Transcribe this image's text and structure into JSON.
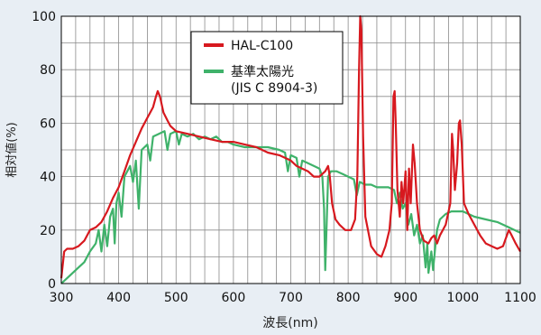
{
  "chart_data": {
    "type": "line",
    "xlabel": "波長(nm)",
    "ylabel": "相対値(%)",
    "xlim": [
      300,
      1100
    ],
    "ylim": [
      0,
      100
    ],
    "x_ticks": [
      300,
      400,
      500,
      600,
      700,
      800,
      900,
      1000,
      1100
    ],
    "y_ticks": [
      0,
      20,
      40,
      60,
      80,
      100
    ],
    "grid": true,
    "legend_position": "top-center",
    "series": [
      {
        "name": "HAL-C100",
        "color": "#d7191f",
        "points": [
          [
            300,
            2
          ],
          [
            305,
            12
          ],
          [
            310,
            13
          ],
          [
            320,
            13
          ],
          [
            330,
            14
          ],
          [
            340,
            16
          ],
          [
            350,
            20
          ],
          [
            360,
            21
          ],
          [
            370,
            23
          ],
          [
            380,
            27
          ],
          [
            390,
            32
          ],
          [
            400,
            36
          ],
          [
            410,
            42
          ],
          [
            420,
            48
          ],
          [
            430,
            53
          ],
          [
            440,
            58
          ],
          [
            450,
            62
          ],
          [
            455,
            64
          ],
          [
            460,
            66
          ],
          [
            465,
            70
          ],
          [
            468,
            72
          ],
          [
            472,
            70
          ],
          [
            478,
            64
          ],
          [
            485,
            61
          ],
          [
            490,
            59
          ],
          [
            500,
            57
          ],
          [
            520,
            56
          ],
          [
            540,
            55
          ],
          [
            560,
            54
          ],
          [
            580,
            53
          ],
          [
            600,
            53
          ],
          [
            620,
            52
          ],
          [
            640,
            51
          ],
          [
            660,
            49
          ],
          [
            680,
            48
          ],
          [
            700,
            46
          ],
          [
            710,
            44
          ],
          [
            720,
            43
          ],
          [
            730,
            42
          ],
          [
            740,
            40
          ],
          [
            750,
            40
          ],
          [
            760,
            42
          ],
          [
            765,
            44
          ],
          [
            768,
            40
          ],
          [
            772,
            30
          ],
          [
            778,
            24
          ],
          [
            785,
            22
          ],
          [
            795,
            20
          ],
          [
            805,
            20
          ],
          [
            812,
            24
          ],
          [
            816,
            40
          ],
          [
            819,
            80
          ],
          [
            821,
            100
          ],
          [
            823,
            95
          ],
          [
            826,
            55
          ],
          [
            830,
            25
          ],
          [
            840,
            14
          ],
          [
            850,
            11
          ],
          [
            858,
            10
          ],
          [
            865,
            14
          ],
          [
            872,
            20
          ],
          [
            876,
            30
          ],
          [
            879,
            70
          ],
          [
            881,
            72
          ],
          [
            883,
            60
          ],
          [
            886,
            35
          ],
          [
            890,
            25
          ],
          [
            893,
            38
          ],
          [
            896,
            30
          ],
          [
            900,
            42
          ],
          [
            903,
            20
          ],
          [
            906,
            43
          ],
          [
            909,
            30
          ],
          [
            913,
            52
          ],
          [
            916,
            45
          ],
          [
            920,
            30
          ],
          [
            925,
            20
          ],
          [
            932,
            16
          ],
          [
            940,
            15
          ],
          [
            945,
            17
          ],
          [
            950,
            18
          ],
          [
            955,
            15
          ],
          [
            960,
            18
          ],
          [
            970,
            22
          ],
          [
            978,
            30
          ],
          [
            981,
            56
          ],
          [
            983,
            50
          ],
          [
            986,
            35
          ],
          [
            990,
            45
          ],
          [
            993,
            60
          ],
          [
            995,
            61
          ],
          [
            998,
            52
          ],
          [
            1002,
            30
          ],
          [
            1010,
            26
          ],
          [
            1020,
            22
          ],
          [
            1030,
            18
          ],
          [
            1040,
            15
          ],
          [
            1050,
            14
          ],
          [
            1060,
            13
          ],
          [
            1070,
            14
          ],
          [
            1080,
            20
          ],
          [
            1085,
            18
          ],
          [
            1092,
            15
          ],
          [
            1100,
            12
          ]
        ]
      },
      {
        "name": "基準太陽光\n(JIS C 8904-3)",
        "color": "#3fb26a",
        "points": [
          [
            300,
            0
          ],
          [
            310,
            2
          ],
          [
            320,
            4
          ],
          [
            330,
            6
          ],
          [
            340,
            8
          ],
          [
            350,
            12
          ],
          [
            360,
            15
          ],
          [
            365,
            20
          ],
          [
            370,
            12
          ],
          [
            375,
            22
          ],
          [
            380,
            14
          ],
          [
            385,
            25
          ],
          [
            390,
            28
          ],
          [
            393,
            15
          ],
          [
            396,
            30
          ],
          [
            400,
            34
          ],
          [
            405,
            25
          ],
          [
            410,
            40
          ],
          [
            420,
            44
          ],
          [
            425,
            38
          ],
          [
            430,
            46
          ],
          [
            435,
            28
          ],
          [
            440,
            50
          ],
          [
            450,
            52
          ],
          [
            455,
            46
          ],
          [
            460,
            55
          ],
          [
            470,
            56
          ],
          [
            480,
            57
          ],
          [
            485,
            50
          ],
          [
            490,
            56
          ],
          [
            500,
            57
          ],
          [
            505,
            52
          ],
          [
            510,
            56
          ],
          [
            520,
            55
          ],
          [
            530,
            56
          ],
          [
            540,
            54
          ],
          [
            550,
            55
          ],
          [
            560,
            54
          ],
          [
            570,
            55
          ],
          [
            580,
            53
          ],
          [
            590,
            53
          ],
          [
            600,
            52
          ],
          [
            620,
            51
          ],
          [
            640,
            51
          ],
          [
            660,
            51
          ],
          [
            680,
            50
          ],
          [
            690,
            49
          ],
          [
            695,
            42
          ],
          [
            700,
            48
          ],
          [
            710,
            47
          ],
          [
            715,
            40
          ],
          [
            720,
            46
          ],
          [
            730,
            45
          ],
          [
            740,
            44
          ],
          [
            750,
            43
          ],
          [
            755,
            40
          ],
          [
            758,
            28
          ],
          [
            760,
            5
          ],
          [
            762,
            18
          ],
          [
            765,
            40
          ],
          [
            770,
            42
          ],
          [
            780,
            42
          ],
          [
            790,
            41
          ],
          [
            800,
            40
          ],
          [
            810,
            39
          ],
          [
            815,
            33
          ],
          [
            820,
            38
          ],
          [
            830,
            37
          ],
          [
            840,
            37
          ],
          [
            850,
            36
          ],
          [
            860,
            36
          ],
          [
            870,
            36
          ],
          [
            880,
            35
          ],
          [
            885,
            30
          ],
          [
            890,
            34
          ],
          [
            895,
            28
          ],
          [
            900,
            30
          ],
          [
            905,
            22
          ],
          [
            910,
            26
          ],
          [
            915,
            18
          ],
          [
            920,
            22
          ],
          [
            925,
            15
          ],
          [
            930,
            18
          ],
          [
            935,
            6
          ],
          [
            938,
            15
          ],
          [
            940,
            4
          ],
          [
            945,
            12
          ],
          [
            948,
            5
          ],
          [
            952,
            14
          ],
          [
            955,
            20
          ],
          [
            960,
            24
          ],
          [
            970,
            26
          ],
          [
            980,
            27
          ],
          [
            990,
            27
          ],
          [
            1000,
            27
          ],
          [
            1020,
            25
          ],
          [
            1040,
            24
          ],
          [
            1060,
            23
          ],
          [
            1080,
            21
          ],
          [
            1100,
            19
          ]
        ]
      }
    ]
  }
}
